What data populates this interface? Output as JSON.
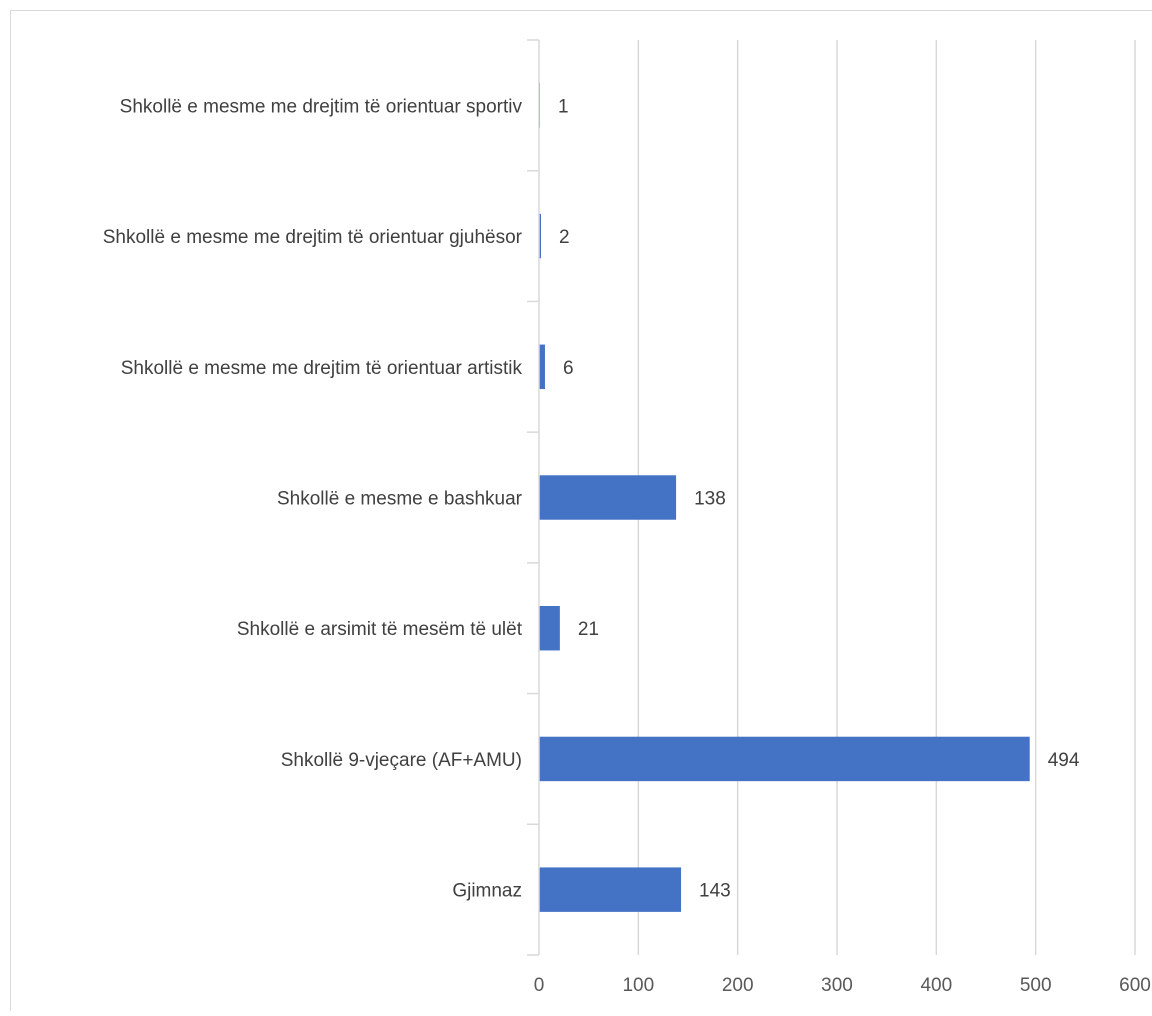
{
  "chart_data": {
    "type": "bar",
    "orientation": "horizontal",
    "categories": [
      "Shkollë e mesme me drejtim të orientuar sportiv",
      "Shkollë e mesme me drejtim të orientuar gjuhësor",
      "Shkollë e mesme me drejtim të orientuar artistik",
      "Shkollë e mesme e bashkuar",
      "Shkollë e arsimit të mesëm të ulët",
      "Shkollë 9-vjeçare (AF+AMU)",
      "Gjimnaz"
    ],
    "values": [
      1,
      2,
      6,
      138,
      21,
      494,
      143
    ],
    "data_labels": [
      "1",
      "2",
      "6",
      "138",
      "21",
      "494",
      "143"
    ],
    "x_ticks": [
      "0",
      "100",
      "200",
      "300",
      "400",
      "500",
      "600"
    ],
    "xlim": [
      0,
      600
    ],
    "grid": "vertical",
    "legend": "none",
    "colors": {
      "bar": "#4472C4",
      "grid": "#D9D9D9",
      "axis": "#D9D9D9",
      "text": "#404040",
      "border": "#D9D9D9"
    }
  }
}
